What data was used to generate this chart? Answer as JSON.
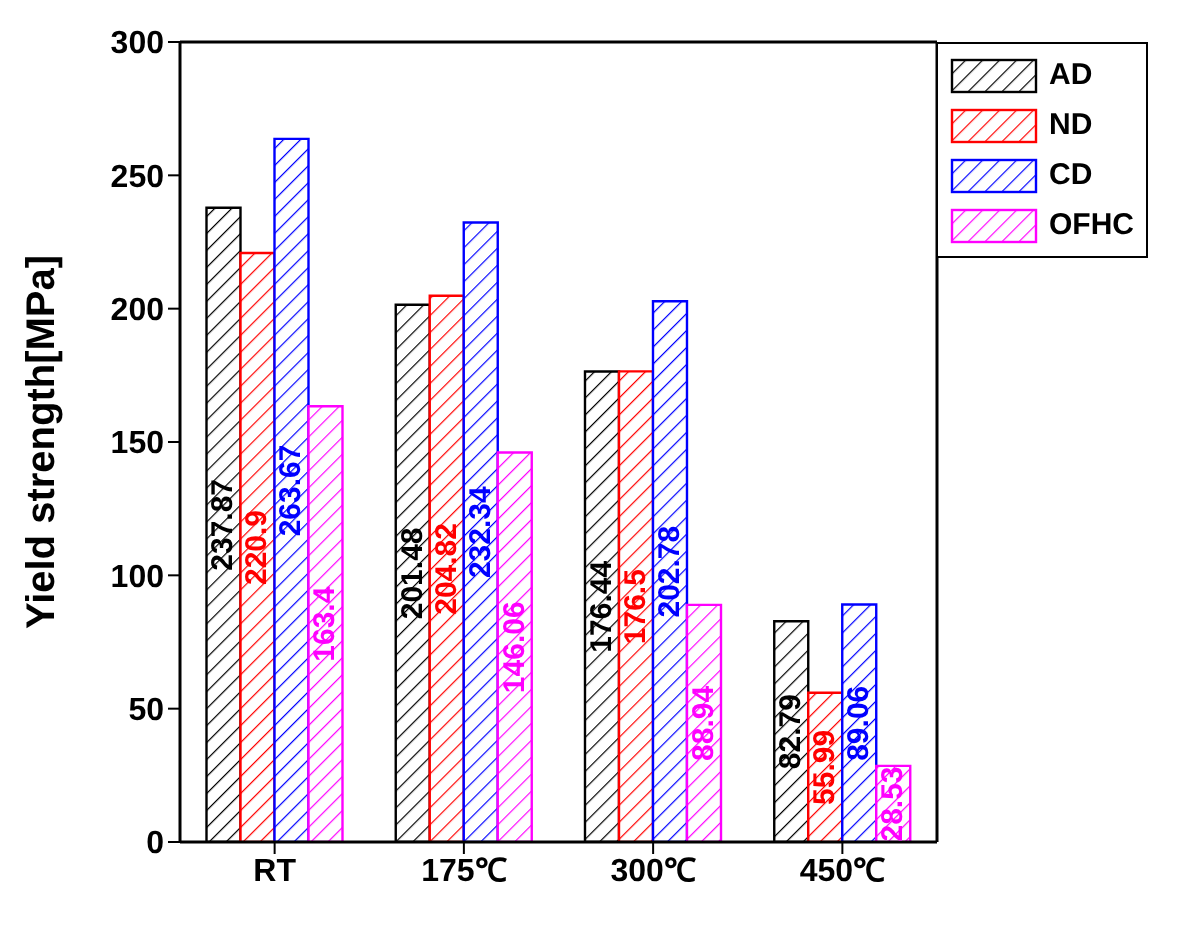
{
  "chart_data": {
    "type": "bar",
    "ylabel": "Yield strength[MPa]",
    "categories": [
      "RT",
      "175℃",
      "300℃",
      "450℃"
    ],
    "series": [
      {
        "name": "AD",
        "color": "#000000",
        "values": [
          237.87,
          201.48,
          176.44,
          82.79
        ]
      },
      {
        "name": "ND",
        "color": "#ff0000",
        "values": [
          220.9,
          204.82,
          176.5,
          55.99
        ]
      },
      {
        "name": "CD",
        "color": "#0000ff",
        "values": [
          263.67,
          232.34,
          202.78,
          89.06
        ]
      },
      {
        "name": "OFHC",
        "color": "#ff00ff",
        "values": [
          163.4,
          146.06,
          88.94,
          28.53
        ]
      }
    ],
    "ylim": [
      0,
      300
    ],
    "yticks": [
      0,
      50,
      100,
      150,
      200,
      250,
      300
    ],
    "data_labels": true,
    "legend": "top right",
    "grid": false
  }
}
